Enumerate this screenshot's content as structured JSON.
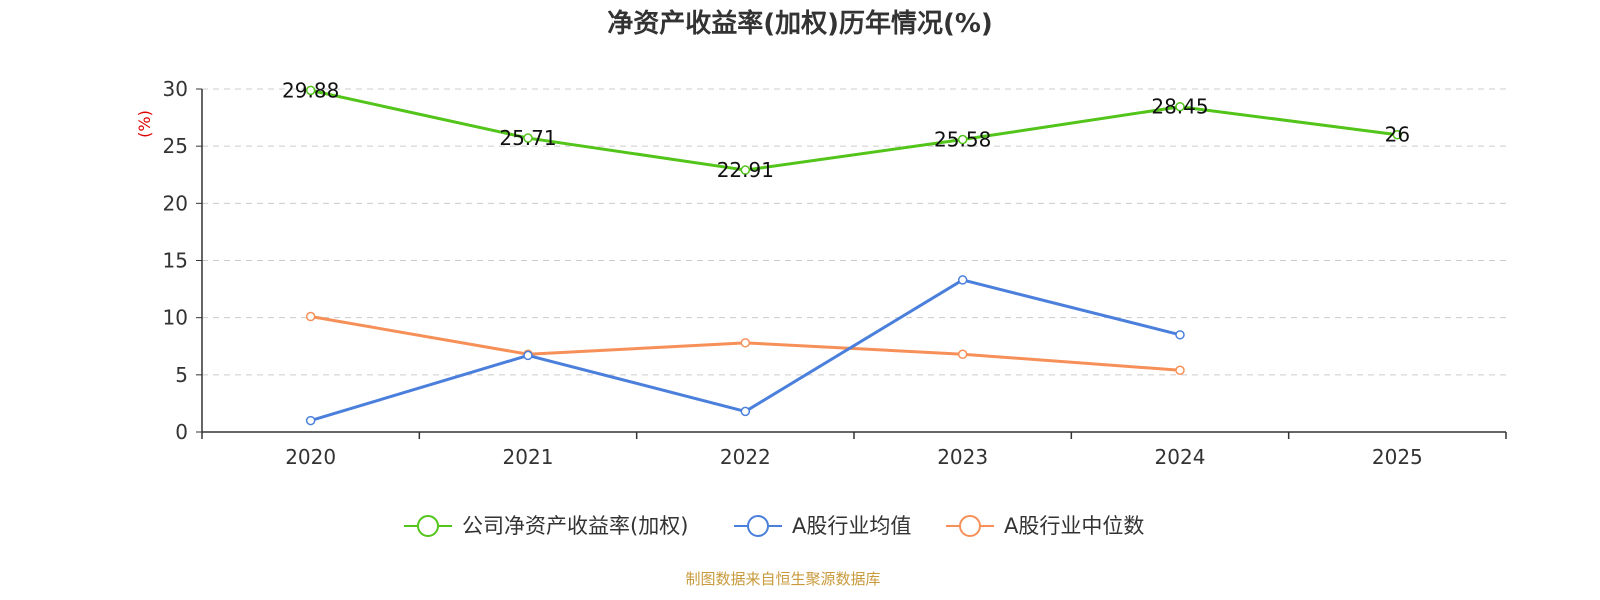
{
  "chart_data": {
    "type": "line",
    "title": "净资产收益率(加权)历年情况(%)",
    "ylabel": "(%)",
    "xlabel": "",
    "categories": [
      "2020",
      "2021",
      "2022",
      "2023",
      "2024",
      "2025"
    ],
    "ylim": [
      0,
      30
    ],
    "yticks": [
      0,
      5,
      10,
      15,
      20,
      25,
      30
    ],
    "grid": true,
    "legend_position": "bottom",
    "series": [
      {
        "name": "公司净资产收益率(加权)",
        "color": "#52c41a",
        "values": [
          29.88,
          25.71,
          22.91,
          25.58,
          28.45,
          26
        ],
        "labels": [
          "29.88",
          "25.71",
          "22.91",
          "25.58",
          "28.45",
          "26"
        ]
      },
      {
        "name": "A股行业均值",
        "color": "#4a7fdc",
        "values": [
          1.0,
          6.7,
          1.8,
          13.3,
          8.5,
          null
        ]
      },
      {
        "name": "A股行业中位数",
        "color": "#f79058",
        "values": [
          10.1,
          6.8,
          7.8,
          6.8,
          5.4,
          null
        ]
      }
    ]
  },
  "source": {
    "text": "制图数据来自恒生聚源数据库",
    "color": "#c89a3c"
  }
}
